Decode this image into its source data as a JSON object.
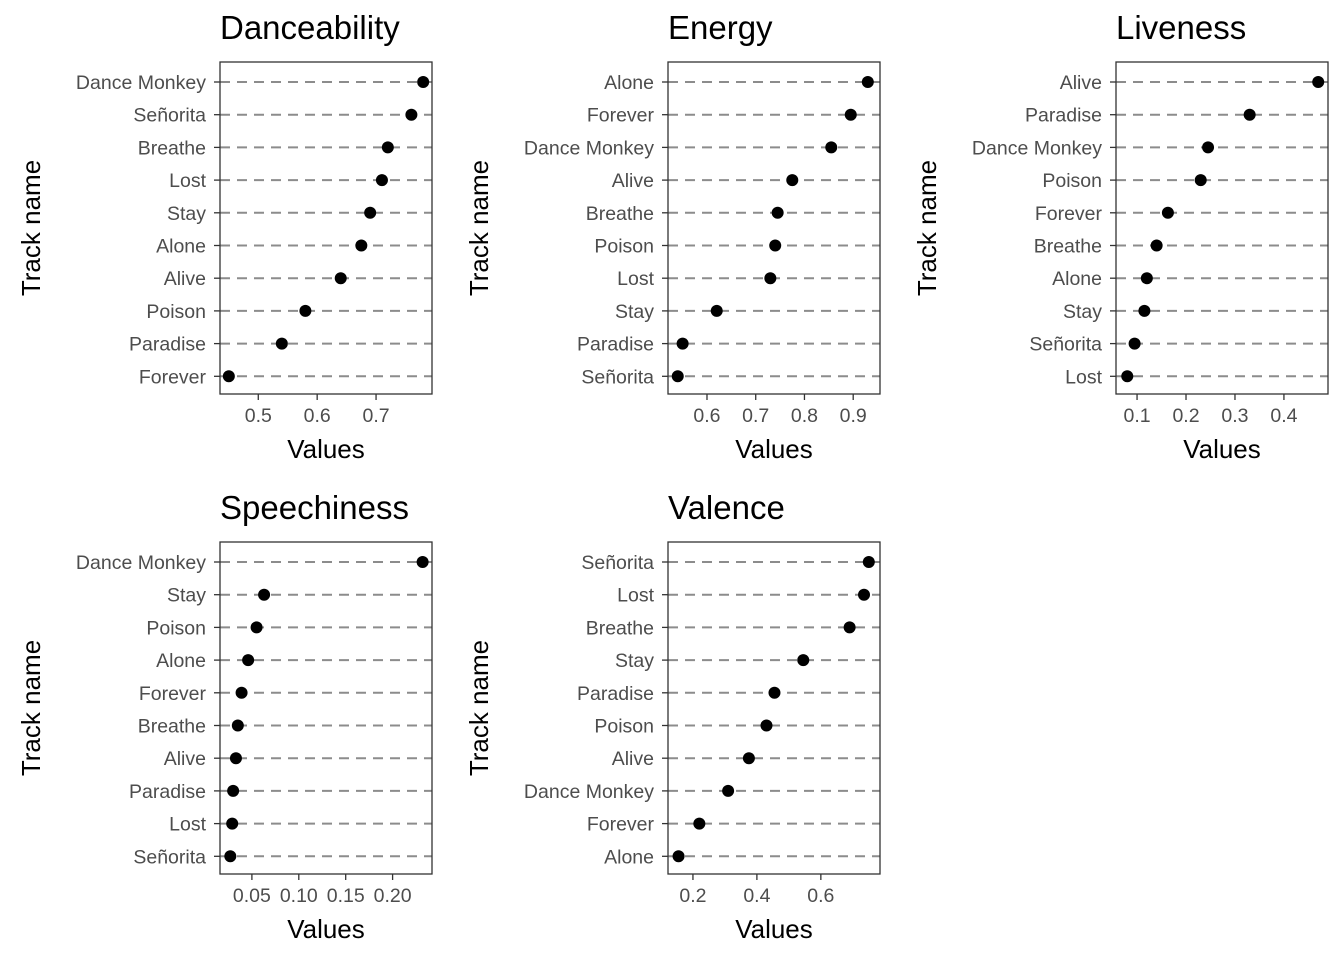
{
  "chart_data": [
    {
      "type": "scatter",
      "title": "Danceability",
      "xlabel": "Values",
      "ylabel": "Track name",
      "xlim": [
        0.435,
        0.795
      ],
      "xticks": [
        0.5,
        0.6,
        0.7
      ],
      "xtick_labels": [
        "0.5",
        "0.6",
        "0.7"
      ],
      "categories": [
        "Dance Monkey",
        "Señorita",
        "Breathe",
        "Lost",
        "Stay",
        "Alone",
        "Alive",
        "Poison",
        "Paradise",
        "Forever"
      ],
      "values": [
        0.78,
        0.76,
        0.72,
        0.71,
        0.69,
        0.675,
        0.64,
        0.58,
        0.54,
        0.45
      ]
    },
    {
      "type": "scatter",
      "title": "Energy",
      "xlabel": "Values",
      "ylabel": "Track name",
      "xlim": [
        0.52,
        0.955
      ],
      "xticks": [
        0.6,
        0.7,
        0.8,
        0.9
      ],
      "xtick_labels": [
        "0.6",
        "0.7",
        "0.8",
        "0.9"
      ],
      "categories": [
        "Alone",
        "Forever",
        "Dance Monkey",
        "Alive",
        "Breathe",
        "Poison",
        "Lost",
        "Stay",
        "Paradise",
        "Señorita"
      ],
      "values": [
        0.93,
        0.895,
        0.855,
        0.775,
        0.745,
        0.74,
        0.73,
        0.62,
        0.55,
        0.54
      ]
    },
    {
      "type": "scatter",
      "title": "Liveness",
      "xlabel": "Values",
      "ylabel": "Track name",
      "xlim": [
        0.057,
        0.49
      ],
      "xticks": [
        0.1,
        0.2,
        0.3,
        0.4
      ],
      "xtick_labels": [
        "0.1",
        "0.2",
        "0.3",
        "0.4"
      ],
      "categories": [
        "Alive",
        "Paradise",
        "Dance Monkey",
        "Poison",
        "Forever",
        "Breathe",
        "Alone",
        "Stay",
        "Señorita",
        "Lost"
      ],
      "values": [
        0.47,
        0.33,
        0.245,
        0.23,
        0.163,
        0.14,
        0.12,
        0.115,
        0.095,
        0.08
      ]
    },
    {
      "type": "scatter",
      "title": "Speechiness",
      "xlabel": "Values",
      "ylabel": "Track name",
      "xlim": [
        0.016,
        0.242
      ],
      "xticks": [
        0.05,
        0.1,
        0.15,
        0.2
      ],
      "xtick_labels": [
        "0.05",
        "0.10",
        "0.15",
        "0.20"
      ],
      "categories": [
        "Dance Monkey",
        "Stay",
        "Poison",
        "Alone",
        "Forever",
        "Breathe",
        "Alive",
        "Paradise",
        "Lost",
        "Señorita"
      ],
      "values": [
        0.232,
        0.063,
        0.055,
        0.046,
        0.039,
        0.035,
        0.033,
        0.03,
        0.029,
        0.027
      ]
    },
    {
      "type": "scatter",
      "title": "Valence",
      "xlabel": "Values",
      "ylabel": "Track name",
      "xlim": [
        0.122,
        0.785
      ],
      "xticks": [
        0.2,
        0.4,
        0.6
      ],
      "xtick_labels": [
        "0.2",
        "0.4",
        "0.6"
      ],
      "categories": [
        "Señorita",
        "Lost",
        "Breathe",
        "Stay",
        "Paradise",
        "Poison",
        "Alive",
        "Dance Monkey",
        "Forever",
        "Alone"
      ],
      "values": [
        0.75,
        0.735,
        0.69,
        0.545,
        0.455,
        0.43,
        0.375,
        0.31,
        0.22,
        0.155
      ]
    }
  ]
}
